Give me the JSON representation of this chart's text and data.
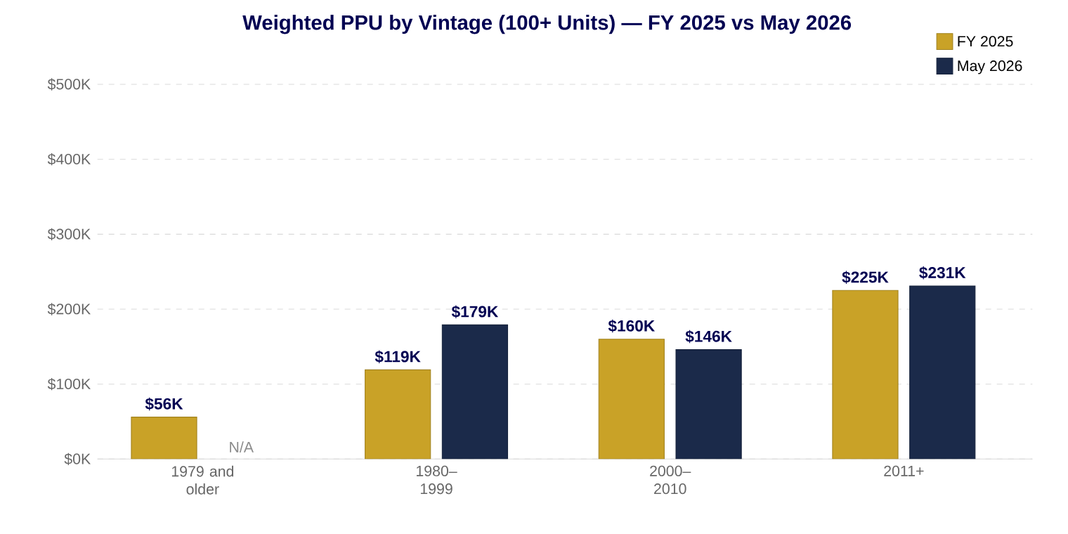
{
  "chart_data": {
    "type": "bar",
    "title": "Weighted PPU by Vintage (100+ Units) — FY 2025 vs May 2026",
    "categories": [
      "1979 and older",
      "1980–1999",
      "2000–2010",
      "2011+"
    ],
    "series": [
      {
        "name": "FY 2025",
        "color": "#c9a227",
        "values": [
          56000,
          119000,
          160000,
          225000
        ],
        "value_labels": [
          "$56K",
          "$119K",
          "$160K",
          "$225K"
        ]
      },
      {
        "name": "May 2026",
        "color": "#1b2a4a",
        "values": [
          null,
          179000,
          146000,
          231000
        ],
        "value_labels": [
          "N/A",
          "$179K",
          "$146K",
          "$231K"
        ]
      }
    ],
    "ylim": [
      0,
      500000
    ],
    "yticks": [
      {
        "value": 0,
        "label": "$0K"
      },
      {
        "value": 100000,
        "label": "$100K"
      },
      {
        "value": 200000,
        "label": "$200K"
      },
      {
        "value": 300000,
        "label": "$300K"
      },
      {
        "value": 400000,
        "label": "$400K"
      },
      {
        "value": 500000,
        "label": "$500K"
      }
    ],
    "grid": "y",
    "legend": "top right"
  }
}
